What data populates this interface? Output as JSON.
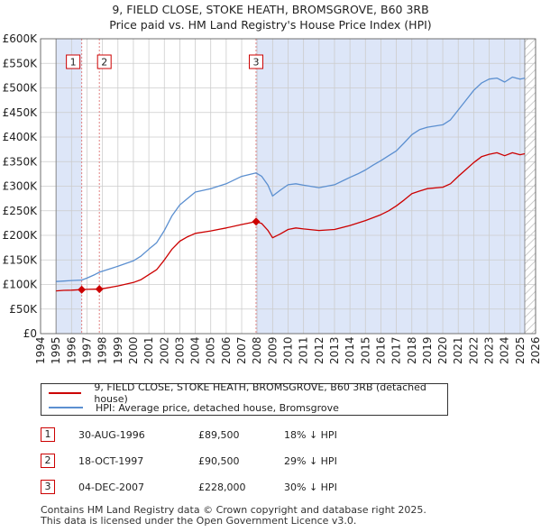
{
  "title": {
    "line1": "9, FIELD CLOSE, STOKE HEATH, BROMSGROVE, B60 3RB",
    "line2": "Price paid vs. HM Land Registry's House Price Index (HPI)"
  },
  "colors": {
    "red": "#cc0000",
    "blue": "#5b8fd0",
    "shade": "#dde6f8",
    "grid": "#cccccc"
  },
  "legend": {
    "red_label": "9, FIELD CLOSE, STOKE HEATH, BROMSGROVE, B60 3RB (detached house)",
    "blue_label": "HPI: Average price, detached house, Bromsgrove"
  },
  "sales": [
    {
      "num": "1",
      "date": "30-AUG-1996",
      "price": "£89,500",
      "hpi": "18% ↓ HPI"
    },
    {
      "num": "2",
      "date": "18-OCT-1997",
      "price": "£90,500",
      "hpi": "29% ↓ HPI"
    },
    {
      "num": "3",
      "date": "04-DEC-2007",
      "price": "£228,000",
      "hpi": "30% ↓ HPI"
    }
  ],
  "footer": {
    "line1": "Contains HM Land Registry data © Crown copyright and database right 2025.",
    "line2": "This data is licensed under the Open Government Licence v3.0."
  },
  "chart_data": {
    "type": "line",
    "title": "9, FIELD CLOSE, STOKE HEATH, BROMSGROVE, B60 3RB — Price paid vs. HM Land Registry's House Price Index (HPI)",
    "xlabel": "",
    "ylabel": "",
    "xlim": [
      1994,
      2026
    ],
    "ylim": [
      0,
      600000
    ],
    "x_ticks": [
      "1994",
      "1995",
      "1996",
      "1997",
      "1998",
      "1999",
      "2000",
      "2001",
      "2002",
      "2003",
      "2004",
      "2005",
      "2006",
      "2007",
      "2008",
      "2009",
      "2010",
      "2011",
      "2012",
      "2013",
      "2014",
      "2015",
      "2016",
      "2017",
      "2018",
      "2019",
      "2020",
      "2021",
      "2022",
      "2023",
      "2024",
      "2025",
      "2026"
    ],
    "y_ticks": [
      {
        "value": 0,
        "label": "£0"
      },
      {
        "value": 50000,
        "label": "£50K"
      },
      {
        "value": 100000,
        "label": "£100K"
      },
      {
        "value": 150000,
        "label": "£150K"
      },
      {
        "value": 200000,
        "label": "£200K"
      },
      {
        "value": 250000,
        "label": "£250K"
      },
      {
        "value": 300000,
        "label": "£300K"
      },
      {
        "value": 350000,
        "label": "£350K"
      },
      {
        "value": 400000,
        "label": "£400K"
      },
      {
        "value": 450000,
        "label": "£450K"
      },
      {
        "value": 500000,
        "label": "£500K"
      },
      {
        "value": 550000,
        "label": "£550K"
      },
      {
        "value": 600000,
        "label": "£600K"
      }
    ],
    "data_start": 1995.0,
    "data_end": 2025.3,
    "shaded_regions": [
      [
        1995.0,
        1996.66
      ],
      [
        2007.93,
        2025.3
      ]
    ],
    "hatched_region": [
      2025.3,
      2026
    ],
    "series": [
      {
        "name": "9, FIELD CLOSE, STOKE HEATH, BROMSGROVE, B60 3RB (detached house)",
        "color": "#cc0000",
        "points": [
          [
            1995.0,
            87000
          ],
          [
            1995.5,
            88000
          ],
          [
            1996.0,
            88500
          ],
          [
            1996.66,
            89500
          ],
          [
            1997.0,
            90000
          ],
          [
            1997.5,
            90500
          ],
          [
            1997.8,
            90500
          ],
          [
            1998.3,
            93000
          ],
          [
            1999.0,
            97000
          ],
          [
            2000.0,
            104000
          ],
          [
            2000.5,
            110000
          ],
          [
            2001.0,
            120000
          ],
          [
            2001.5,
            130000
          ],
          [
            2002.0,
            150000
          ],
          [
            2002.5,
            172000
          ],
          [
            2003.0,
            188000
          ],
          [
            2003.5,
            197000
          ],
          [
            2004.0,
            204000
          ],
          [
            2005.0,
            209000
          ],
          [
            2006.0,
            215000
          ],
          [
            2007.0,
            222000
          ],
          [
            2007.93,
            228000
          ],
          [
            2008.3,
            224000
          ],
          [
            2008.7,
            210000
          ],
          [
            2009.0,
            195000
          ],
          [
            2009.5,
            203000
          ],
          [
            2010.0,
            212000
          ],
          [
            2010.5,
            215000
          ],
          [
            2011.0,
            213000
          ],
          [
            2012.0,
            210000
          ],
          [
            2013.0,
            212000
          ],
          [
            2014.0,
            220000
          ],
          [
            2014.5,
            225000
          ],
          [
            2015.0,
            230000
          ],
          [
            2015.5,
            236000
          ],
          [
            2016.0,
            242000
          ],
          [
            2016.5,
            250000
          ],
          [
            2017.0,
            260000
          ],
          [
            2017.5,
            272000
          ],
          [
            2018.0,
            285000
          ],
          [
            2018.5,
            290000
          ],
          [
            2019.0,
            295000
          ],
          [
            2020.0,
            298000
          ],
          [
            2020.5,
            305000
          ],
          [
            2021.0,
            320000
          ],
          [
            2021.5,
            334000
          ],
          [
            2022.0,
            348000
          ],
          [
            2022.5,
            360000
          ],
          [
            2023.0,
            365000
          ],
          [
            2023.5,
            368000
          ],
          [
            2024.0,
            362000
          ],
          [
            2024.5,
            368000
          ],
          [
            2025.0,
            364000
          ],
          [
            2025.3,
            366000
          ]
        ]
      },
      {
        "name": "HPI: Average price, detached house, Bromsgrove",
        "color": "#5b8fd0",
        "points": [
          [
            1995.0,
            106000
          ],
          [
            1995.5,
            107000
          ],
          [
            1996.0,
            108000
          ],
          [
            1996.66,
            109000
          ],
          [
            1997.0,
            113000
          ],
          [
            1997.5,
            120000
          ],
          [
            1997.8,
            125000
          ],
          [
            1998.3,
            130000
          ],
          [
            1999.0,
            137000
          ],
          [
            2000.0,
            148000
          ],
          [
            2000.5,
            158000
          ],
          [
            2001.0,
            172000
          ],
          [
            2001.5,
            185000
          ],
          [
            2002.0,
            210000
          ],
          [
            2002.5,
            240000
          ],
          [
            2003.0,
            262000
          ],
          [
            2003.5,
            275000
          ],
          [
            2004.0,
            288000
          ],
          [
            2005.0,
            295000
          ],
          [
            2006.0,
            305000
          ],
          [
            2007.0,
            320000
          ],
          [
            2007.93,
            327000
          ],
          [
            2008.3,
            320000
          ],
          [
            2008.7,
            302000
          ],
          [
            2009.0,
            280000
          ],
          [
            2009.5,
            292000
          ],
          [
            2010.0,
            303000
          ],
          [
            2010.5,
            305000
          ],
          [
            2011.0,
            302000
          ],
          [
            2012.0,
            297000
          ],
          [
            2013.0,
            303000
          ],
          [
            2014.0,
            318000
          ],
          [
            2014.5,
            325000
          ],
          [
            2015.0,
            333000
          ],
          [
            2015.5,
            343000
          ],
          [
            2016.0,
            352000
          ],
          [
            2016.5,
            362000
          ],
          [
            2017.0,
            372000
          ],
          [
            2017.5,
            388000
          ],
          [
            2018.0,
            405000
          ],
          [
            2018.5,
            415000
          ],
          [
            2019.0,
            420000
          ],
          [
            2020.0,
            425000
          ],
          [
            2020.5,
            435000
          ],
          [
            2021.0,
            455000
          ],
          [
            2021.5,
            475000
          ],
          [
            2022.0,
            495000
          ],
          [
            2022.5,
            510000
          ],
          [
            2023.0,
            518000
          ],
          [
            2023.5,
            520000
          ],
          [
            2024.0,
            512000
          ],
          [
            2024.5,
            522000
          ],
          [
            2025.0,
            518000
          ],
          [
            2025.3,
            520000
          ]
        ]
      }
    ],
    "sale_markers": [
      {
        "label": "1",
        "x": 1996.66,
        "y": 89500
      },
      {
        "label": "2",
        "x": 1997.8,
        "y": 90500
      },
      {
        "label": "3",
        "x": 2007.93,
        "y": 228000
      }
    ]
  }
}
